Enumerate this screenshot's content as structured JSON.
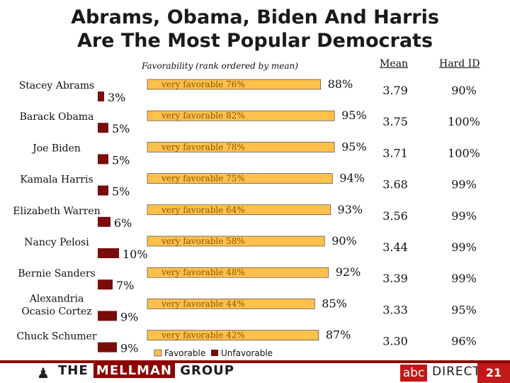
{
  "chart_data": {
    "type": "bar",
    "title_lines": [
      "Abrams, Obama, Biden And Harris",
      "Are The Most Popular Democrats"
    ],
    "subtitle": "Favorability (rank ordered by mean)",
    "column_headers": {
      "mean": "Mean",
      "hard_id": "Hard ID"
    },
    "legend": {
      "favorable": "Favorable",
      "unfavorable": "Unfavorable"
    },
    "very_favorable_prefix": "very favorable",
    "colors": {
      "favorable": "#ffc04c",
      "unfavorable": "#7a0c0c",
      "text": "#111111"
    },
    "rows": [
      {
        "name": [
          "Stacey Abrams"
        ],
        "favorable": 88,
        "unfavorable": 3,
        "very_favorable": 76,
        "mean": "3.79",
        "hard_id": "90%"
      },
      {
        "name": [
          "Barack Obama"
        ],
        "favorable": 95,
        "unfavorable": 5,
        "very_favorable": 82,
        "mean": "3.75",
        "hard_id": "100%"
      },
      {
        "name": [
          "Joe Biden"
        ],
        "favorable": 95,
        "unfavorable": 5,
        "very_favorable": 78,
        "mean": "3.71",
        "hard_id": "100%"
      },
      {
        "name": [
          "Kamala Harris"
        ],
        "favorable": 94,
        "unfavorable": 5,
        "very_favorable": 75,
        "mean": "3.68",
        "hard_id": "99%"
      },
      {
        "name": [
          "Elizabeth Warren"
        ],
        "favorable": 93,
        "unfavorable": 6,
        "very_favorable": 64,
        "mean": "3.56",
        "hard_id": "99%"
      },
      {
        "name": [
          "Nancy Pelosi"
        ],
        "favorable": 90,
        "unfavorable": 10,
        "very_favorable": 58,
        "mean": "3.44",
        "hard_id": "99%"
      },
      {
        "name": [
          "Bernie Sanders"
        ],
        "favorable": 92,
        "unfavorable": 7,
        "very_favorable": 48,
        "mean": "3.39",
        "hard_id": "99%"
      },
      {
        "name": [
          "Alexandria",
          "Ocasio Cortez"
        ],
        "favorable": 85,
        "unfavorable": 9,
        "very_favorable": 44,
        "mean": "3.33",
        "hard_id": "95%"
      },
      {
        "name": [
          "Chuck Schumer"
        ],
        "favorable": 87,
        "unfavorable": 9,
        "very_favorable": 42,
        "mean": "3.30",
        "hard_id": "96%"
      }
    ]
  },
  "footer": {
    "firm_pre": "THE ",
    "firm_highlight": "MELLMAN",
    "firm_post": " GROUP",
    "partner_logo": "abc",
    "partner_name": "DIRECT",
    "page_number": "21"
  }
}
